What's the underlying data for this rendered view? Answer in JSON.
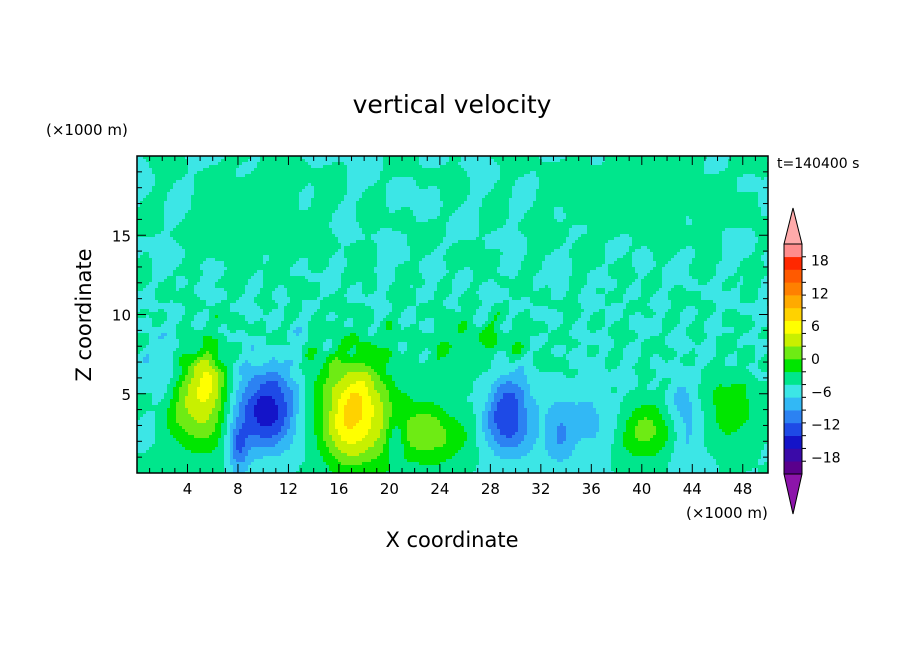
{
  "chart_data": {
    "type": "heatmap",
    "title": "vertical velocity",
    "xlabel": "X coordinate",
    "ylabel": "Z coordinate",
    "x_unit": "(×1000 m)",
    "y_unit": "(×1000 m)",
    "time_label": "t=140400 s",
    "xlim": [
      0,
      50
    ],
    "ylim": [
      0,
      20
    ],
    "x_ticks": [
      4,
      8,
      12,
      16,
      20,
      24,
      28,
      32,
      36,
      40,
      44,
      48
    ],
    "y_ticks": [
      5,
      10,
      15
    ],
    "colorbar": {
      "min": -21,
      "max": 21,
      "step": 3,
      "tick_values": [
        18,
        12,
        6,
        0,
        -6,
        -12,
        -18
      ],
      "tick_labels": [
        "18",
        "12",
        "6",
        "0",
        "−6",
        "−12",
        "−18"
      ],
      "colors": [
        "#5a008c",
        "#3a0aa8",
        "#1414c8",
        "#1e4ae6",
        "#2c82f2",
        "#32b8f5",
        "#3ce6e6",
        "#00e68c",
        "#00e600",
        "#6eeb14",
        "#c8f000",
        "#ffff00",
        "#ffd200",
        "#ffaa00",
        "#ff8000",
        "#ff5a00",
        "#ff2800",
        "#ff8c8c"
      ],
      "over_color": "#ffaaaa",
      "under_color": "#8c14aa"
    },
    "features": [
      {
        "x": 5.0,
        "z": 4.5,
        "sx": 1.6,
        "sz": 2.2,
        "amp": 11
      },
      {
        "x": 5.8,
        "z": 5.8,
        "sx": 0.8,
        "sz": 1.2,
        "amp": 5
      },
      {
        "x": 10.2,
        "z": 4.0,
        "sx": 1.8,
        "sz": 1.8,
        "amp": -14
      },
      {
        "x": 8.0,
        "z": 1.6,
        "sx": 0.6,
        "sz": 1.0,
        "amp": -8
      },
      {
        "x": 17.2,
        "z": 3.8,
        "sx": 2.0,
        "sz": 2.4,
        "amp": 16
      },
      {
        "x": 20.5,
        "z": 2.0,
        "sx": 0.5,
        "sz": 1.2,
        "amp": -6
      },
      {
        "x": 23.0,
        "z": 2.4,
        "sx": 2.0,
        "sz": 1.4,
        "amp": 8
      },
      {
        "x": 29.5,
        "z": 3.6,
        "sx": 1.3,
        "sz": 1.8,
        "amp": -12
      },
      {
        "x": 33.5,
        "z": 2.5,
        "sx": 0.8,
        "sz": 1.4,
        "amp": -6
      },
      {
        "x": 36.0,
        "z": 3.0,
        "sx": 1.4,
        "sz": 1.8,
        "amp": -4
      },
      {
        "x": 40.5,
        "z": 2.5,
        "sx": 1.8,
        "sz": 1.2,
        "amp": 7
      },
      {
        "x": 43.5,
        "z": 3.0,
        "sx": 0.9,
        "sz": 2.0,
        "amp": -6
      },
      {
        "x": 47.0,
        "z": 4.0,
        "sx": 1.6,
        "sz": 1.6,
        "amp": 5
      },
      {
        "x": 2.0,
        "z": 7.0,
        "sx": 1.2,
        "sz": 1.5,
        "amp": -3
      },
      {
        "x": 27.0,
        "z": 8.0,
        "sx": 3.0,
        "sz": 1.2,
        "amp": 3
      },
      {
        "x": 10.0,
        "z": 16.0,
        "sx": 3.0,
        "sz": 2.0,
        "amp": 1.5
      },
      {
        "x": 40.0,
        "z": 17.5,
        "sx": 4.0,
        "sz": 1.5,
        "amp": 2.0
      }
    ]
  }
}
